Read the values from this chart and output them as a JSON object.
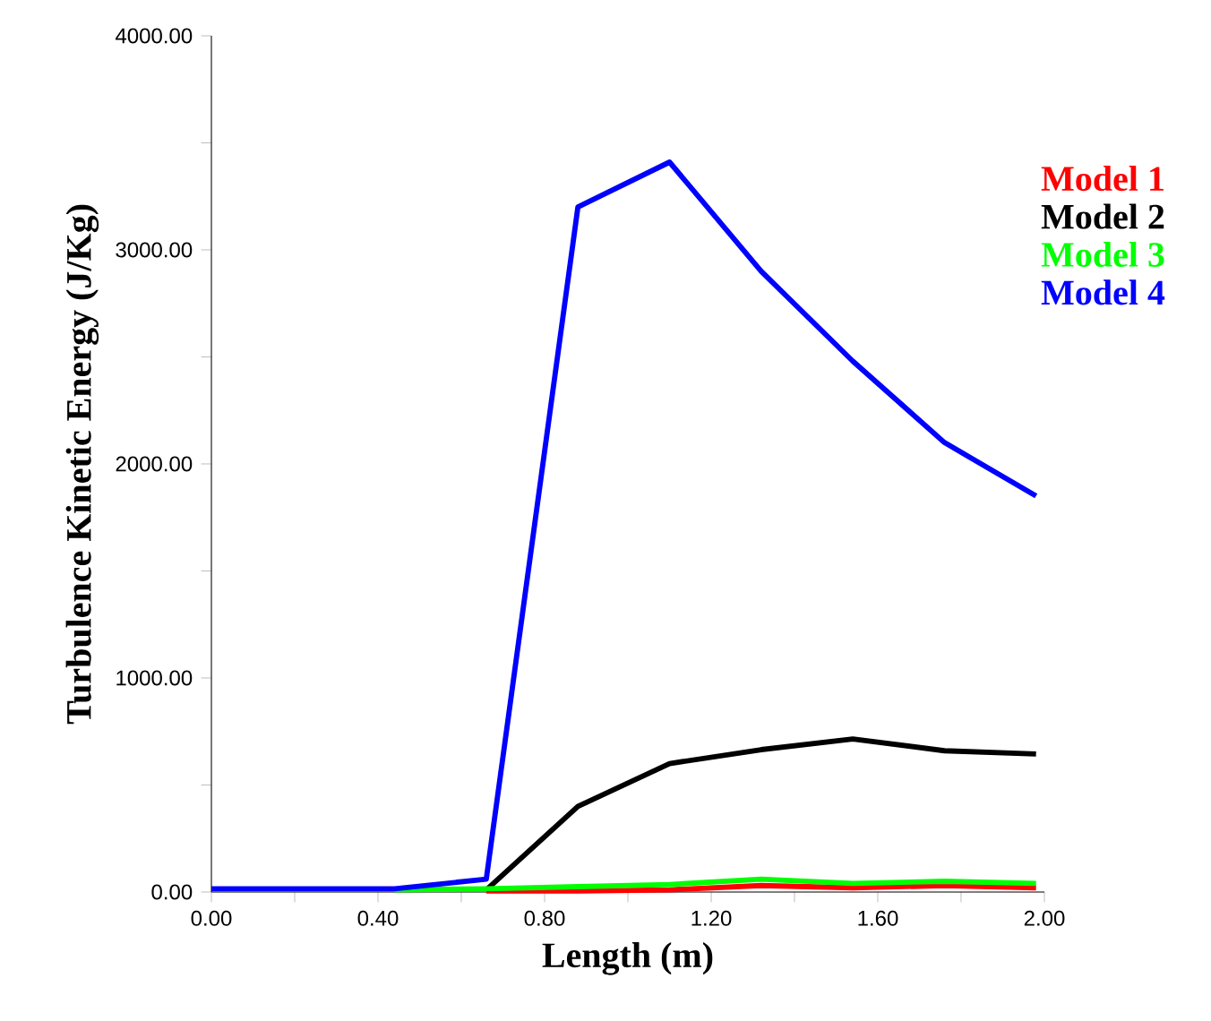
{
  "chart_data": {
    "type": "line",
    "xlabel": "Length (m)",
    "ylabel": "Turbulence Kinetic Energy (J/Kg)",
    "xlim": [
      0,
      2
    ],
    "ylim": [
      0,
      4000
    ],
    "xticks": [
      {
        "value": 0,
        "label": "0.00"
      },
      {
        "value": 0.2,
        "label": null
      },
      {
        "value": 0.4,
        "label": "0.40"
      },
      {
        "value": 0.6,
        "label": null
      },
      {
        "value": 0.8,
        "label": "0.80"
      },
      {
        "value": 1.0,
        "label": null
      },
      {
        "value": 1.2,
        "label": "1.20"
      },
      {
        "value": 1.4,
        "label": null
      },
      {
        "value": 1.6,
        "label": "1.60"
      },
      {
        "value": 1.8,
        "label": null
      },
      {
        "value": 2,
        "label": "2.00"
      }
    ],
    "yticks": [
      {
        "value": 0,
        "label": "0.00"
      },
      {
        "value": 500,
        "label": null
      },
      {
        "value": 1000,
        "label": "1000.00"
      },
      {
        "value": 1500,
        "label": null
      },
      {
        "value": 2000,
        "label": "2000.00"
      },
      {
        "value": 2500,
        "label": null
      },
      {
        "value": 3000,
        "label": "3000.00"
      },
      {
        "value": 3500,
        "label": null
      },
      {
        "value": 4000,
        "label": "4000.00"
      }
    ],
    "grid": false,
    "legend": "top right",
    "marker": "none",
    "line_style": "solid",
    "series": [
      {
        "name": "Model 1",
        "color": "#ff0000",
        "x": [
          0.66,
          0.88,
          1.1,
          1.32,
          1.54,
          1.76,
          1.98
        ],
        "values": [
          5,
          5,
          10,
          30,
          20,
          30,
          20
        ]
      },
      {
        "name": "Model 2",
        "color": "#000000",
        "x": [
          0.66,
          0.88,
          1.1,
          1.32,
          1.54,
          1.76,
          1.98
        ],
        "values": [
          10,
          400,
          600,
          665,
          715,
          660,
          645
        ]
      },
      {
        "name": "Model 3",
        "color": "#00ff00",
        "x": [
          0.44,
          0.66,
          0.88,
          1.1,
          1.32,
          1.54,
          1.76,
          1.98
        ],
        "values": [
          10,
          15,
          25,
          35,
          60,
          40,
          50,
          40
        ]
      },
      {
        "name": "Model 4",
        "color": "#0000ff",
        "x": [
          0,
          0.44,
          0.66,
          0.88,
          1.1,
          1.32,
          1.54,
          1.76,
          1.98
        ],
        "values": [
          15,
          15,
          60,
          3200,
          3410,
          2900,
          2480,
          2100,
          1850
        ]
      }
    ]
  }
}
